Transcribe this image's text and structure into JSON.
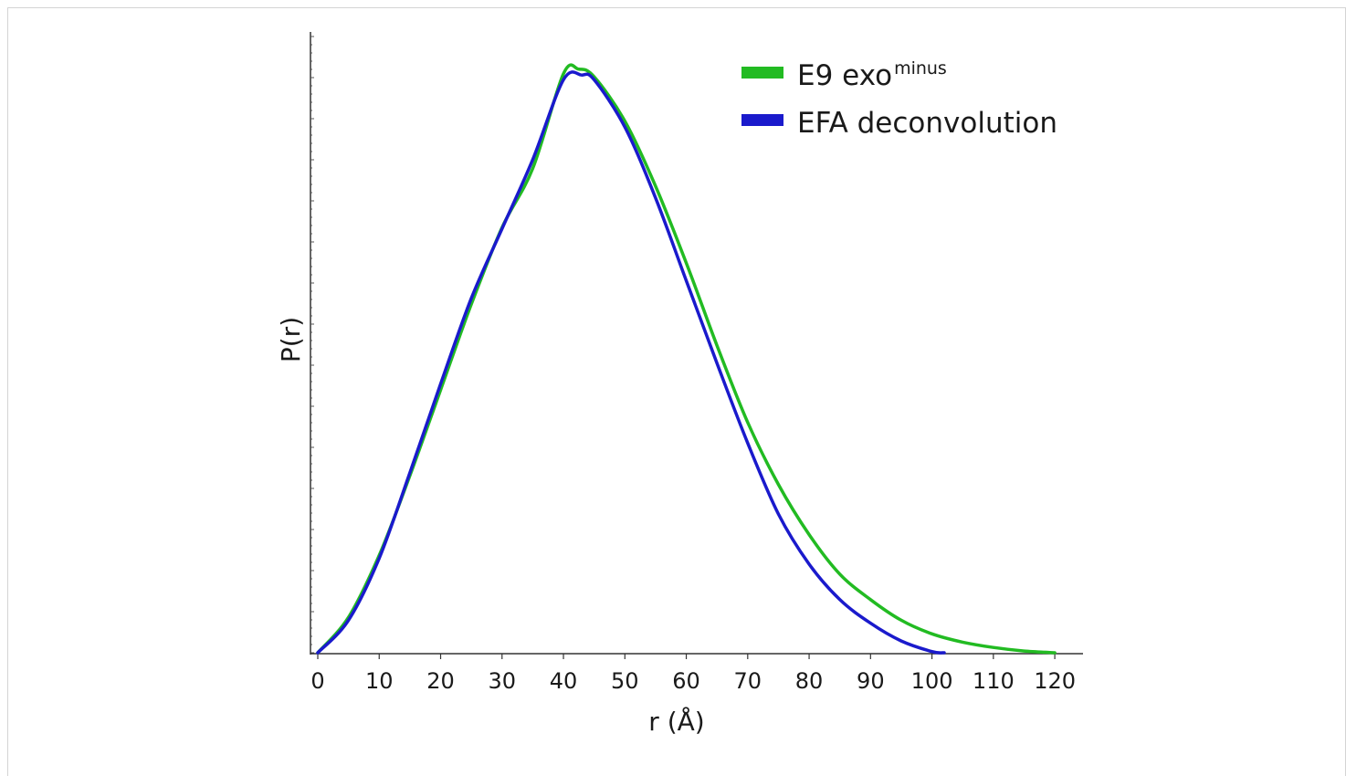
{
  "chart_data": {
    "type": "line",
    "xlabel": "r (Å)",
    "ylabel": "P(r)",
    "xlim": [
      0,
      124
    ],
    "ylim": [
      0,
      1.0
    ],
    "xticks": [
      0,
      10,
      20,
      30,
      40,
      50,
      60,
      70,
      80,
      90,
      100,
      110,
      120
    ],
    "yticks_labeled": false,
    "grid": false,
    "legend_position": "top-right",
    "series": [
      {
        "name": "E9 exo",
        "name_superscript": "minus",
        "color": "#22bb22",
        "x": [
          0,
          5,
          10,
          15,
          20,
          25,
          30,
          35,
          40,
          42.5,
          45,
          50,
          55,
          60,
          65,
          70,
          75,
          80,
          85,
          90,
          95,
          100,
          105,
          110,
          115,
          120
        ],
        "y": [
          0.0,
          0.06,
          0.165,
          0.3,
          0.445,
          0.59,
          0.72,
          0.82,
          0.98,
          0.988,
          0.975,
          0.9,
          0.79,
          0.66,
          0.52,
          0.39,
          0.285,
          0.2,
          0.133,
          0.09,
          0.055,
          0.032,
          0.018,
          0.009,
          0.003,
          0.0
        ]
      },
      {
        "name": "EFA deconvolution",
        "color": "#1a1acc",
        "x": [
          0,
          5,
          10,
          15,
          20,
          25,
          30,
          35,
          40,
          43,
          45,
          50,
          55,
          60,
          65,
          70,
          75,
          80,
          85,
          90,
          95,
          100,
          102
        ],
        "y": [
          0.0,
          0.055,
          0.16,
          0.305,
          0.455,
          0.6,
          0.718,
          0.835,
          0.97,
          0.978,
          0.97,
          0.89,
          0.77,
          0.63,
          0.49,
          0.355,
          0.235,
          0.15,
          0.09,
          0.05,
          0.02,
          0.002,
          0.0
        ]
      }
    ]
  }
}
